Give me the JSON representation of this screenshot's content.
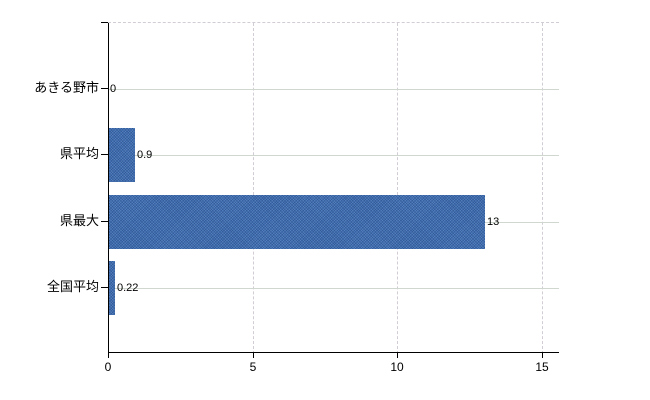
{
  "chart_data": {
    "type": "bar",
    "orientation": "horizontal",
    "title": "",
    "xlabel": "",
    "ylabel": "",
    "categories": [
      "あきる野市",
      "県平均",
      "県最大",
      "全国平均"
    ],
    "values": [
      0,
      0.9,
      13,
      0.22
    ],
    "value_labels": [
      "0",
      "0.9",
      "13",
      "0.22"
    ],
    "x_ticks": [
      {
        "value": 0,
        "label": "0"
      },
      {
        "value": 5,
        "label": "5"
      },
      {
        "value": 10,
        "label": "10"
      },
      {
        "value": 15,
        "label": "15"
      }
    ],
    "xlim": [
      0,
      15.6
    ],
    "grid": true,
    "legend": false,
    "gridline_style": {
      "vertical": "dashed",
      "horizontal": "solid",
      "plot_top_border": "dashed"
    },
    "colors": {
      "bar": "#3b6aae",
      "axis": "#000000",
      "gridline_solid": "#cfd7cf",
      "gridline_dashed": "#d2ccd4",
      "background": "#ffffff",
      "text": "#000000"
    }
  }
}
